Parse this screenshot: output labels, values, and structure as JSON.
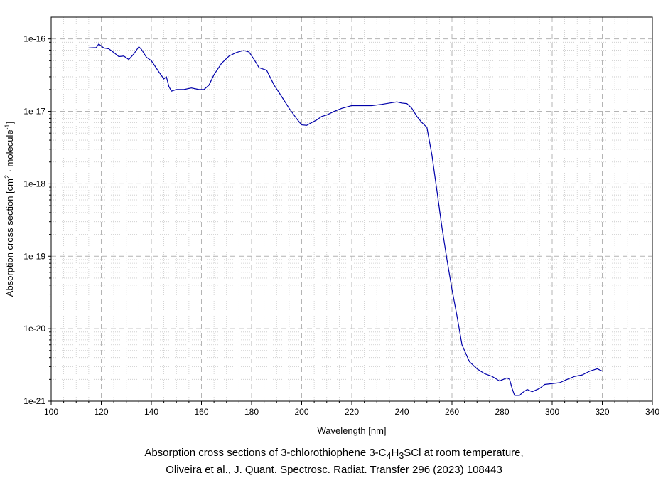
{
  "chart_data": {
    "type": "line",
    "xlabel": "Wavelength [nm]",
    "ylabel_parts": [
      "Absorption cross section [cm",
      "2",
      " · molecule",
      "-1",
      "]"
    ],
    "xlim": [
      100,
      340
    ],
    "ylim": [
      1e-21,
      2e-16
    ],
    "yscale": "log",
    "grid": true,
    "x_ticks": [
      100,
      120,
      140,
      160,
      180,
      200,
      220,
      240,
      260,
      280,
      300,
      320,
      340
    ],
    "x_tick_labels": [
      "100",
      "120",
      "140",
      "160",
      "180",
      "200",
      "220",
      "240",
      "260",
      "280",
      "300",
      "320",
      "340"
    ],
    "y_ticks": [
      1e-21,
      1e-20,
      1e-19,
      1e-18,
      1e-17,
      1e-16
    ],
    "y_tick_labels": [
      "1e-21",
      "1e-20",
      "1e-19",
      "1e-18",
      "1e-17",
      "1e-16"
    ],
    "line_color": "#0000aa",
    "series": [
      {
        "x": [
          115,
          118,
          119,
          121,
          123,
          125,
          127,
          129,
          131,
          133,
          135,
          136,
          138,
          140,
          143,
          145,
          146,
          147,
          148,
          150,
          153,
          156,
          159,
          161,
          163,
          165,
          168,
          171,
          174,
          176,
          177,
          179,
          181,
          183,
          186,
          189,
          192,
          195,
          198,
          200,
          202,
          204,
          206,
          208,
          210,
          213,
          216,
          220,
          224,
          228,
          232,
          235,
          238,
          240,
          242,
          244,
          246,
          248,
          250,
          252,
          254,
          256,
          258,
          260,
          262,
          264,
          265,
          267,
          270,
          273,
          276,
          279,
          282,
          283,
          284,
          285,
          287,
          288,
          290,
          292,
          295,
          297,
          300,
          303,
          306,
          309,
          312,
          315,
          318,
          320
        ],
        "y": [
          7.5e-17,
          7.6e-17,
          8.5e-17,
          7.5e-17,
          7.3e-17,
          6.5e-17,
          5.7e-17,
          5.8e-17,
          5.2e-17,
          6.2e-17,
          7.8e-17,
          7.2e-17,
          5.6e-17,
          5e-17,
          3.5e-17,
          2.8e-17,
          3e-17,
          2.2e-17,
          1.9e-17,
          2e-17,
          2e-17,
          2.1e-17,
          2e-17,
          2e-17,
          2.3e-17,
          3.2e-17,
          4.6e-17,
          5.8e-17,
          6.5e-17,
          6.8e-17,
          6.9e-17,
          6.6e-17,
          5.2e-17,
          4e-17,
          3.7e-17,
          2.3e-17,
          1.6e-17,
          1.1e-17,
          7.9e-18,
          6.5e-18,
          6.4e-18,
          7e-18,
          7.6e-18,
          8.5e-18,
          8.9e-18,
          1e-17,
          1.1e-17,
          1.2e-17,
          1.2e-17,
          1.2e-17,
          1.25e-17,
          1.3e-17,
          1.35e-17,
          1.3e-17,
          1.28e-17,
          1.1e-17,
          8.5e-18,
          7e-18,
          6e-18,
          2.5e-18,
          8e-19,
          2.5e-19,
          9e-20,
          3.5e-20,
          1.5e-20,
          6e-21,
          5e-21,
          3.5e-21,
          2.8e-21,
          2.4e-21,
          2.2e-21,
          1.9e-21,
          2.1e-21,
          2e-21,
          1.5e-21,
          1.2e-21,
          1.2e-21,
          1.3e-21,
          1.45e-21,
          1.35e-21,
          1.5e-21,
          1.7e-21,
          1.75e-21,
          1.8e-21,
          2e-21,
          2.2e-21,
          2.3e-21,
          2.6e-21,
          2.8e-21,
          2.6e-21
        ]
      }
    ]
  },
  "caption": {
    "line1_prefix": "Absorption cross sections of 3-chlorothiophene 3-C",
    "sub1": "4",
    "line1_mid1": "H",
    "sub2": "3",
    "line1_suffix": "SCl at room temperature,",
    "line2": "Oliveira et al., J. Quant. Spectrosc. Radiat. Transfer 296 (2023) 108443"
  }
}
